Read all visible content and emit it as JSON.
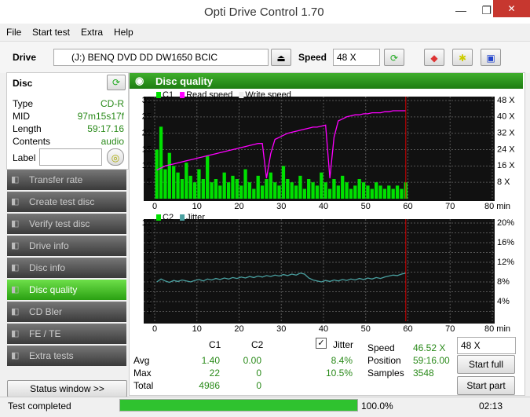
{
  "window": {
    "title": "Opti Drive Control 1.70"
  },
  "menu": [
    "File",
    "Start test",
    "Extra",
    "Help"
  ],
  "toolbar": {
    "drive_label": "Drive",
    "drive": "(J:)   BENQ DVD DD DW1650 BCIC",
    "speed_label": "Speed",
    "speed": "48 X"
  },
  "disc": {
    "header": "Disc",
    "fields": [
      [
        "Type",
        "CD-R"
      ],
      [
        "MID",
        "97m15s17f"
      ],
      [
        "Length",
        "59:17.16"
      ],
      [
        "Contents",
        "audio"
      ]
    ],
    "label": "Label"
  },
  "nav": [
    "Transfer rate",
    "Create test disc",
    "Verify test disc",
    "Drive info",
    "Disc info",
    "Disc quality",
    "CD Bler",
    "FE / TE",
    "Extra tests"
  ],
  "status_window": "Status window >>",
  "panel_title": "Disc quality",
  "charts": [
    {
      "type": "bar",
      "x": [
        0.5,
        1.5,
        2.5,
        3.5,
        4.5,
        5.5,
        6.5,
        7.5,
        8.5,
        9.5,
        10.5,
        11.5,
        12.5,
        13.5,
        14.5,
        15.5,
        16.5,
        17.5,
        18.5,
        19.5,
        20.5,
        21.5,
        22.5,
        23.5,
        24.5,
        25.5,
        26.5,
        27.5,
        28.5,
        29.5,
        30.5,
        31.5,
        32.5,
        33.5,
        34.5,
        35.5,
        36.5,
        37.5,
        38.5,
        39.5,
        40.5,
        41.5,
        42.5,
        43.5,
        44.5,
        45.5,
        46.5,
        47.5,
        48.5,
        49.5,
        50.5,
        51.5,
        52.5,
        53.5,
        54.5,
        55.5,
        56.5,
        57.5,
        58.5,
        59.5
      ],
      "xlim": [
        0,
        80
      ],
      "xticks": [
        0,
        10,
        20,
        30,
        40,
        50,
        60,
        70,
        {
          "value": 80,
          "label": "80 min"
        }
      ],
      "ylim": [
        0,
        30
      ],
      "yticks": [
        5,
        10,
        15,
        20,
        25,
        30
      ],
      "y2lim": [
        0,
        48
      ],
      "y2ticks": [
        {
          "value": 8,
          "label": "8 X"
        },
        {
          "value": 16,
          "label": "16 X"
        },
        {
          "value": 24,
          "label": "24 X"
        },
        {
          "value": 32,
          "label": "32 X"
        },
        {
          "value": 40,
          "label": "40 X"
        },
        {
          "value": 48,
          "label": "48 X"
        }
      ],
      "grid": true,
      "series": [
        {
          "name": "C1",
          "type": "bar",
          "color": "#00e000",
          "values": [
            15,
            22,
            9,
            14,
            10,
            8,
            6,
            11,
            7,
            5,
            9,
            6,
            13,
            5,
            6,
            4,
            8,
            5,
            7,
            6,
            4,
            9,
            5,
            3,
            7,
            4,
            6,
            8,
            5,
            4,
            10,
            6,
            5,
            4,
            7,
            3,
            6,
            5,
            4,
            8,
            5,
            3,
            6,
            4,
            7,
            5,
            3,
            4,
            6,
            5,
            4,
            3,
            5,
            4,
            3,
            4,
            3,
            4,
            3,
            5
          ]
        },
        {
          "name": "Read speed",
          "type": "line",
          "axis": "y2",
          "color": "#ff00ff",
          "values": [
            14,
            15,
            16,
            16.5,
            17,
            17.5,
            18,
            18.5,
            19,
            19.5,
            20,
            20.5,
            21,
            21.5,
            22,
            22.5,
            23,
            23.5,
            24,
            24.5,
            25,
            25.5,
            26,
            26.5,
            27,
            27,
            10,
            22,
            29,
            30,
            31,
            32,
            32.5,
            33,
            33.5,
            34,
            34.5,
            35,
            35,
            35.5,
            36,
            10,
            30,
            38,
            39,
            40,
            40.5,
            41,
            41,
            41.5,
            41.5,
            42,
            42,
            42,
            42.5,
            42.5,
            43,
            43,
            43,
            43
          ]
        },
        {
          "name": "Write speed",
          "type": "line",
          "axis": "y2",
          "color": "#ffffff",
          "values": [
            null,
            null,
            null,
            null,
            null,
            null,
            null,
            null,
            null,
            null,
            null,
            null,
            null,
            null,
            null,
            null,
            null,
            null,
            null,
            null,
            null,
            null,
            null,
            null,
            null,
            null,
            null,
            null,
            null,
            null,
            null,
            null,
            null,
            null,
            null,
            null,
            null,
            null,
            null,
            null,
            null,
            null,
            null,
            null,
            null,
            null,
            null,
            null,
            null,
            null,
            null,
            null,
            null,
            null,
            null,
            null,
            null,
            null,
            null,
            null
          ]
        }
      ]
    },
    {
      "type": "bar",
      "x": [
        0.5,
        1.5,
        2.5,
        3.5,
        4.5,
        5.5,
        6.5,
        7.5,
        8.5,
        9.5,
        10.5,
        11.5,
        12.5,
        13.5,
        14.5,
        15.5,
        16.5,
        17.5,
        18.5,
        19.5,
        20.5,
        21.5,
        22.5,
        23.5,
        24.5,
        25.5,
        26.5,
        27.5,
        28.5,
        29.5,
        30.5,
        31.5,
        32.5,
        33.5,
        34.5,
        35.5,
        36.5,
        37.5,
        38.5,
        39.5,
        40.5,
        41.5,
        42.5,
        43.5,
        44.5,
        45.5,
        46.5,
        47.5,
        48.5,
        49.5,
        50.5,
        51.5,
        52.5,
        53.5,
        54.5,
        55.5,
        56.5,
        57.5,
        58.5,
        59.5
      ],
      "xlim": [
        0,
        80
      ],
      "xticks": [
        0,
        10,
        20,
        30,
        40,
        50,
        60,
        70,
        {
          "value": 80,
          "label": "80 min"
        }
      ],
      "ylim": [
        0,
        10
      ],
      "yticks": [
        1,
        2,
        3,
        4,
        5,
        6,
        7,
        8,
        9,
        10
      ],
      "y2lim": [
        0,
        20
      ],
      "y2ticks": [
        {
          "value": 4,
          "label": "4%"
        },
        {
          "value": 8,
          "label": "8%"
        },
        {
          "value": 12,
          "label": "12%"
        },
        {
          "value": 16,
          "label": "16%"
        },
        {
          "value": 20,
          "label": "20%"
        }
      ],
      "grid": true,
      "series": [
        {
          "name": "C2",
          "type": "bar",
          "color": "#00e000",
          "values": [
            0,
            0,
            0,
            0,
            0,
            0,
            0,
            0,
            0,
            0,
            0,
            0,
            0,
            0,
            0,
            0,
            0,
            0,
            0,
            0,
            0,
            0,
            0,
            0,
            0,
            0,
            0,
            0,
            0,
            0,
            0,
            0,
            0,
            0,
            0,
            0,
            0,
            0,
            0,
            0,
            0,
            0,
            0,
            0,
            0,
            0,
            0,
            0,
            0,
            0,
            0,
            0,
            0,
            0,
            0,
            0,
            0,
            0,
            0,
            0
          ]
        },
        {
          "name": "Jitter",
          "type": "line",
          "axis": "y2",
          "color": "#4aa0a0",
          "values": [
            8.0,
            8.6,
            8.2,
            7.9,
            8.3,
            8.1,
            8.4,
            8.2,
            8.0,
            8.3,
            8.5,
            8.2,
            8.6,
            8.4,
            8.7,
            8.5,
            8.8,
            8.6,
            8.9,
            8.7,
            9.0,
            8.8,
            9.1,
            8.9,
            9.2,
            9.0,
            9.3,
            9.1,
            9.4,
            9.2,
            9.5,
            9.3,
            9.6,
            9.4,
            9.8,
            9.6,
            8.8,
            8.4,
            8.2,
            8.0,
            8.3,
            8.1,
            8.4,
            8.2,
            8.5,
            8.3,
            8.6,
            8.4,
            8.7,
            8.5,
            8.8,
            8.6,
            8.9,
            8.7,
            9.0,
            9.2,
            9.4,
            9.3,
            9.6,
            9.8
          ]
        }
      ]
    }
  ],
  "stats": {
    "headers": [
      "C1",
      "C2"
    ],
    "rows": [
      [
        "Avg",
        "1.40",
        "0.00"
      ],
      [
        "Max",
        "22",
        "0"
      ],
      [
        "Total",
        "4986",
        "0"
      ]
    ],
    "jitter": {
      "label": "Jitter",
      "values": [
        "8.4%",
        "10.5%"
      ]
    }
  },
  "info": [
    [
      "Speed",
      "46.52 X"
    ],
    [
      "Position",
      "59:16.00"
    ],
    [
      "Samples",
      "3548"
    ]
  ],
  "speed_select": "48 X",
  "buttons": [
    "Start full",
    "Start part"
  ],
  "status": {
    "text": "Test completed",
    "progress": "100.0%",
    "time": "02:13"
  }
}
